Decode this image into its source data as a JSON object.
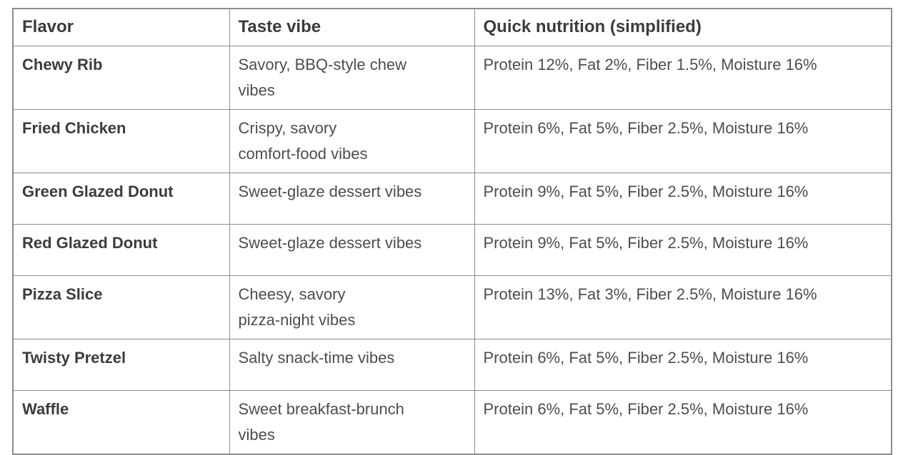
{
  "table": {
    "headers": [
      "Flavor",
      "Taste vibe",
      "Quick nutrition (simplified)"
    ],
    "rows": [
      {
        "flavor": "Chewy Rib",
        "taste_vibe": "Savory, BBQ-style chew\nvibes",
        "nutrition": "Protein 12%, Fat 2%, Fiber 1.5%, Moisture 16%"
      },
      {
        "flavor": "Fried Chicken",
        "taste_vibe": "Crispy, savory\ncomfort-food vibes",
        "nutrition": "Protein 6%, Fat 5%, Fiber 2.5%, Moisture 16%"
      },
      {
        "flavor": "Green Glazed Donut",
        "taste_vibe": "Sweet-glaze dessert vibes",
        "nutrition": "Protein 9%, Fat 5%, Fiber 2.5%, Moisture 16%"
      },
      {
        "flavor": "Red Glazed Donut",
        "taste_vibe": "Sweet-glaze dessert vibes",
        "nutrition": "Protein 9%, Fat 5%, Fiber 2.5%, Moisture 16%"
      },
      {
        "flavor": "Pizza Slice",
        "taste_vibe": "Cheesy, savory\npizza-night vibes",
        "nutrition": "Protein 13%, Fat 3%, Fiber 2.5%, Moisture 16%"
      },
      {
        "flavor": "Twisty Pretzel",
        "taste_vibe": "Salty snack-time vibes",
        "nutrition": "Protein 6%, Fat 5%, Fiber 2.5%, Moisture 16%"
      },
      {
        "flavor": "Waffle",
        "taste_vibe": "Sweet breakfast-brunch\nvibes",
        "nutrition": "Protein 6%, Fat 5%, Fiber 2.5%, Moisture 16%"
      }
    ]
  },
  "colors": {
    "background": "#ffffff",
    "border": "#8c8c8c",
    "heading_text": "#3c3c3c",
    "body_text": "#4d4d4d"
  }
}
